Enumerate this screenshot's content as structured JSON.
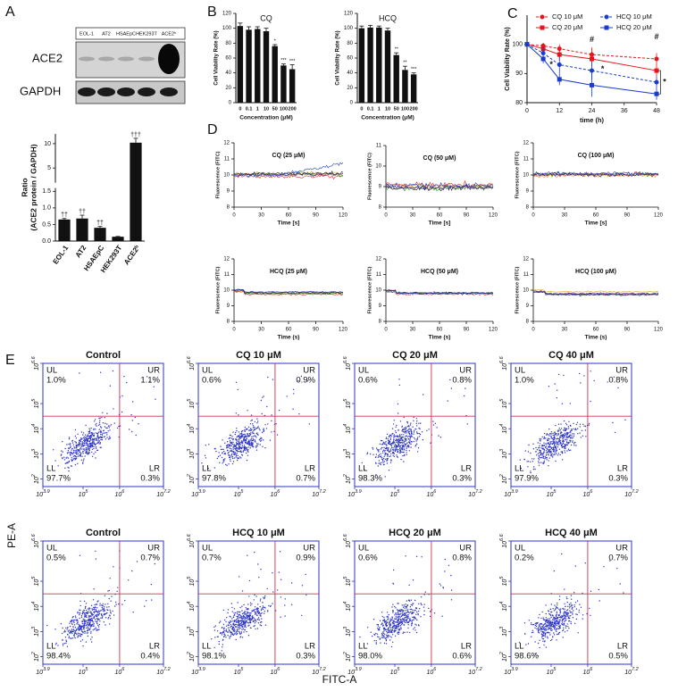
{
  "panel_labels": [
    "A",
    "B",
    "C",
    "D",
    "E"
  ],
  "blot": {
    "lanes": [
      "EOL-1",
      "AT2",
      "HSAEpC",
      "HEK293T",
      "ACE2ʰ"
    ],
    "rows": [
      "ACE2",
      "GAPDH"
    ]
  },
  "flow_axes": {
    "y": "PE-A",
    "x": "FITC-A"
  },
  "chart_data": [
    {
      "type": "bar",
      "categories": [
        "EOL-1",
        "AT2",
        "HSAEpC",
        "HEK293T",
        "ACE2ʰ"
      ],
      "values": [
        0.65,
        0.68,
        0.4,
        0.13,
        10.2
      ],
      "errors": [
        0.03,
        0.1,
        0.04,
        0.01,
        0.9
      ],
      "annotations": [
        "††",
        "††",
        "††",
        null,
        "†††"
      ],
      "color": "#111111",
      "ylim": [
        [
          0,
          1.6
        ],
        [
          2,
          12
        ]
      ],
      "yticks": [
        {
          "value": 0,
          "label": "0.0"
        },
        0.5,
        {
          "value": 1,
          "label": "1.0"
        },
        1.5,
        5,
        10
      ],
      "ylabel": [
        "Ratio",
        "(ACE2 protein / GAPDH)"
      ]
    },
    {
      "type": "bar",
      "title": "CQ",
      "categories": [
        "0",
        "0.1",
        "1",
        "10",
        "50",
        "100",
        "200"
      ],
      "values": [
        103,
        98,
        99,
        96,
        76,
        50,
        45
      ],
      "errors": [
        4,
        4,
        3,
        4,
        2,
        2,
        6
      ],
      "annotations": [
        null,
        null,
        null,
        null,
        "*",
        "***",
        "***"
      ],
      "color": "#111111",
      "ylim": [
        0,
        120
      ],
      "yticks": [
        0,
        20,
        40,
        60,
        80,
        100,
        120
      ],
      "ylabel": "Cell Viability Rate (%)",
      "xlabel": "Concentration (μM)"
    },
    {
      "type": "bar",
      "title": "HCQ",
      "categories": [
        "0",
        "0.1",
        "1",
        "10",
        "50",
        "100",
        "200"
      ],
      "values": [
        100,
        101,
        101,
        97,
        64,
        44,
        38
      ],
      "errors": [
        3,
        3,
        2,
        3,
        3,
        5,
        2
      ],
      "annotations": [
        null,
        null,
        null,
        null,
        "**",
        "**",
        "***"
      ],
      "color": "#111111",
      "ylim": [
        0,
        120
      ],
      "yticks": [
        0,
        20,
        40,
        60,
        80,
        100,
        120
      ],
      "ylabel": "Cell Viability Rate (%)",
      "xlabel": "Concentration (μM)"
    },
    {
      "type": "line",
      "x": [
        0,
        6,
        12,
        24,
        48
      ],
      "xlim": [
        0,
        48
      ],
      "xticks": [
        0,
        12,
        24,
        36,
        48
      ],
      "ylim": [
        80,
        110
      ],
      "yticks": [
        80,
        90,
        100
      ],
      "ylabel": "Cell Viability Rate (%)",
      "xlabel": "time (h)",
      "annotations": [
        "#",
        "#",
        "*",
        "*",
        "*"
      ],
      "series": [
        {
          "name": "CQ 10 μM",
          "color": "#e8141b",
          "dash": true,
          "marker": "circle",
          "values": [
            100,
            99.5,
            98.5,
            96.5,
            95
          ],
          "errors": [
            0.5,
            1,
            1.5,
            2.5,
            2
          ]
        },
        {
          "name": "CQ 20 μM",
          "color": "#e8141b",
          "dash": false,
          "marker": "square",
          "values": [
            100,
            98.5,
            96.5,
            95,
            91
          ],
          "errors": [
            0.5,
            1.5,
            2,
            2.5,
            2
          ]
        },
        {
          "name": "HCQ 10 μM",
          "color": "#1a3ccc",
          "dash": true,
          "marker": "circle",
          "values": [
            100,
            97,
            93,
            91,
            87
          ],
          "errors": [
            0.5,
            2,
            3,
            3,
            2
          ]
        },
        {
          "name": "HCQ 20 μM",
          "color": "#1a3ccc",
          "dash": false,
          "marker": "square",
          "values": [
            100,
            95,
            88,
            86,
            83
          ],
          "errors": [
            0.5,
            1.5,
            2,
            4,
            2
          ]
        }
      ]
    },
    {
      "type": "line",
      "title": "CQ (25 μM)",
      "xlim": [
        0,
        120
      ],
      "xticks": [
        0,
        30,
        60,
        90,
        120
      ],
      "ylim": [
        8,
        12
      ],
      "yticks": [
        8,
        9,
        10,
        11,
        12
      ],
      "ylabel": "Fluorescence (FITC)",
      "xlabel": "Time [s]"
    },
    {
      "type": "line",
      "title": "CQ (50 μM)",
      "xlim": [
        0,
        120
      ],
      "xticks": [
        0,
        30,
        60,
        90,
        120
      ],
      "ylim": [
        8,
        11
      ],
      "yticks": [
        8,
        9,
        10,
        11
      ],
      "ylabel": "Fluorescence (FITC)",
      "xlabel": "Time [s]"
    },
    {
      "type": "line",
      "title": "CQ (100 μM)",
      "xlim": [
        0,
        120
      ],
      "xticks": [
        0,
        30,
        60,
        90,
        120
      ],
      "ylim": [
        8,
        12
      ],
      "yticks": [
        8,
        9,
        10,
        11,
        12
      ],
      "ylabel": "Fluorescence (FITC)",
      "xlabel": "Time [s]"
    },
    {
      "type": "line",
      "title": "HCQ (25 μM)",
      "xlim": [
        0,
        120
      ],
      "xticks": [
        0,
        30,
        60,
        90,
        120
      ],
      "ylim": [
        8,
        12
      ],
      "yticks": [
        8,
        9,
        10,
        11,
        12
      ],
      "ylabel": "Fluorescence (FITC)",
      "xlabel": "Time (s)"
    },
    {
      "type": "line",
      "title": "HCQ (50 μM)",
      "xlim": [
        0,
        120
      ],
      "xticks": [
        0,
        30,
        60,
        90,
        120
      ],
      "ylim": [
        8,
        12
      ],
      "yticks": [
        8,
        9,
        10,
        11,
        12
      ],
      "ylabel": "Fluorescence (FITC)",
      "xlabel": "Time (s)"
    },
    {
      "type": "line",
      "title": "HCQ (100 μM)",
      "xlim": [
        0,
        120
      ],
      "xticks": [
        0,
        30,
        60,
        90,
        120
      ],
      "ylim": [
        8,
        12
      ],
      "yticks": [
        8,
        9,
        10,
        11,
        12
      ],
      "ylabel": "Fluorescence (FITC)",
      "xlabel": "Time (s)"
    },
    {
      "type": "scatter",
      "title": "Control",
      "xlim": [
        3.9,
        7.2
      ],
      "xticks": [
        3.9,
        5,
        6,
        7.2
      ],
      "ylim": [
        1.7,
        6.6
      ],
      "yticks": [
        2,
        3,
        4,
        5,
        6.6
      ],
      "tick_base": "10",
      "quadrants": {
        "names": [
          "UL",
          "UR",
          "LL",
          "LR"
        ],
        "values": [
          1.0,
          1.1,
          97.7,
          0.3
        ],
        "value_labels": [
          "1.0%",
          "1.1%",
          "97.7%",
          "0.3%"
        ]
      }
    },
    {
      "type": "scatter",
      "title": "CQ 10 μM",
      "xlim": [
        3.9,
        7.2
      ],
      "xticks": [
        3.9,
        5,
        6,
        7.2
      ],
      "ylim": [
        1.7,
        6.6
      ],
      "yticks": [
        2,
        3,
        4,
        5,
        6.6
      ],
      "tick_base": "10",
      "quadrants": {
        "names": [
          "UL",
          "UR",
          "LL",
          "LR"
        ],
        "values": [
          0.6,
          0.9,
          97.8,
          0.7
        ],
        "value_labels": [
          "0.6%",
          "0.9%",
          "97.8%",
          "0.7%"
        ]
      }
    },
    {
      "type": "scatter",
      "title": "CQ 20 μM",
      "xlim": [
        3.9,
        7.2
      ],
      "xticks": [
        3.9,
        5,
        6,
        7.2
      ],
      "ylim": [
        1.7,
        6.6
      ],
      "yticks": [
        2,
        3,
        4,
        5,
        6.6
      ],
      "tick_base": "10",
      "quadrants": {
        "names": [
          "UL",
          "UR",
          "LL",
          "LR"
        ],
        "values": [
          0.6,
          0.8,
          98.3,
          0.3
        ],
        "value_labels": [
          "0.6%",
          "0.8%",
          "98.3%",
          "0.3%"
        ]
      }
    },
    {
      "type": "scatter",
      "title": "CQ 40 μM",
      "xlim": [
        3.9,
        7.2
      ],
      "xticks": [
        3.9,
        5,
        6,
        7.2
      ],
      "ylim": [
        1.7,
        6.6
      ],
      "yticks": [
        2,
        3,
        4,
        5,
        6.6
      ],
      "tick_base": "10",
      "quadrants": {
        "names": [
          "UL",
          "UR",
          "LL",
          "LR"
        ],
        "values": [
          1.0,
          0.8,
          97.9,
          0.3
        ],
        "value_labels": [
          "1.0%",
          "0.8%",
          "97.9%",
          "0.3%"
        ]
      }
    },
    {
      "type": "scatter",
      "title": "Control",
      "xlim": [
        3.9,
        7.2
      ],
      "xticks": [
        3.9,
        5,
        6,
        7.2
      ],
      "ylim": [
        1.7,
        6.6
      ],
      "yticks": [
        2,
        3,
        4,
        5,
        6.6
      ],
      "tick_base": "10",
      "quadrants": {
        "names": [
          "UL",
          "UR",
          "LL",
          "LR"
        ],
        "values": [
          0.5,
          0.7,
          98.4,
          0.4
        ],
        "value_labels": [
          "0.5%",
          "0.7%",
          "98.4%",
          "0.4%"
        ]
      }
    },
    {
      "type": "scatter",
      "title": "HCQ 10 μM",
      "xlim": [
        3.9,
        7.2
      ],
      "xticks": [
        3.9,
        5,
        6,
        7.2
      ],
      "ylim": [
        1.7,
        6.6
      ],
      "yticks": [
        2,
        3,
        4,
        5,
        6.6
      ],
      "tick_base": "10",
      "quadrants": {
        "names": [
          "UL",
          "UR",
          "LL",
          "LR"
        ],
        "values": [
          0.7,
          0.9,
          98.1,
          0.3
        ],
        "value_labels": [
          "0.7%",
          "0.9%",
          "98.1%",
          "0.3%"
        ]
      }
    },
    {
      "type": "scatter",
      "title": "HCQ 20 μM",
      "xlim": [
        3.9,
        7.2
      ],
      "xticks": [
        3.9,
        5,
        6,
        7.2
      ],
      "ylim": [
        1.7,
        6.6
      ],
      "yticks": [
        2,
        3,
        4,
        5,
        6.6
      ],
      "tick_base": "10",
      "quadrants": {
        "names": [
          "UL",
          "UR",
          "LL",
          "LR"
        ],
        "values": [
          0.6,
          0.8,
          98.0,
          0.6
        ],
        "value_labels": [
          "0.6%",
          "0.8%",
          "98.0%",
          "0.6%"
        ]
      }
    },
    {
      "type": "scatter",
      "title": "HCQ 40 μM",
      "xlim": [
        3.9,
        7.2
      ],
      "xticks": [
        3.9,
        5,
        6,
        7.2
      ],
      "ylim": [
        1.7,
        6.6
      ],
      "yticks": [
        2,
        3,
        4,
        5,
        6.6
      ],
      "tick_base": "10",
      "quadrants": {
        "names": [
          "UL",
          "UR",
          "LL",
          "LR"
        ],
        "values": [
          0.2,
          0.7,
          98.6,
          0.5
        ],
        "value_labels": [
          "0.2%",
          "0.7%",
          "98.6%",
          "0.5%"
        ]
      }
    }
  ]
}
